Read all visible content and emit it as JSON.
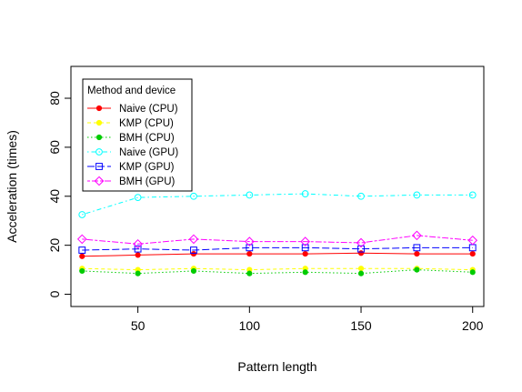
{
  "chart_data": {
    "type": "line",
    "title": "",
    "xlabel": "Pattern length",
    "ylabel": "Acceleration (times)",
    "x": [
      25,
      50,
      75,
      100,
      125,
      150,
      175,
      200
    ],
    "xlim": [
      20,
      205
    ],
    "ylim": [
      -5,
      93
    ],
    "xticks": [
      50,
      100,
      150,
      200
    ],
    "yticks": [
      0,
      20,
      40,
      60,
      80
    ],
    "grid": false,
    "legend": {
      "title": "Method and device",
      "position": "top-left"
    },
    "series": [
      {
        "name": "Naive (CPU)",
        "color": "#ff0000",
        "line": "solid",
        "marker": "filled-circle",
        "values": [
          15.5,
          16.0,
          16.5,
          16.5,
          16.5,
          16.8,
          16.5,
          16.5
        ]
      },
      {
        "name": "KMP (CPU)",
        "color": "#ffff00",
        "line": "dashed",
        "marker": "filled-circle",
        "values": [
          10.5,
          10.0,
          10.5,
          10.0,
          10.5,
          10.5,
          10.5,
          10.0
        ]
      },
      {
        "name": "BMH (CPU)",
        "color": "#00cc00",
        "line": "dotted",
        "marker": "filled-circle",
        "values": [
          9.5,
          8.5,
          9.5,
          8.5,
          9.0,
          8.5,
          10.0,
          9.0
        ]
      },
      {
        "name": "Naive (GPU)",
        "color": "#00ffff",
        "line": "dotdash",
        "marker": "open-circle",
        "values": [
          32.5,
          39.5,
          40.0,
          40.5,
          41.0,
          40.0,
          40.5,
          40.5
        ]
      },
      {
        "name": "KMP (GPU)",
        "color": "#0000ff",
        "line": "longdash",
        "marker": "open-square",
        "values": [
          18.0,
          18.5,
          18.0,
          19.0,
          19.0,
          18.5,
          19.0,
          19.0
        ]
      },
      {
        "name": "BMH (GPU)",
        "color": "#ff00ff",
        "line": "twodash",
        "marker": "open-diamond",
        "values": [
          22.5,
          20.5,
          22.5,
          21.5,
          21.5,
          21.0,
          24.0,
          22.0
        ]
      }
    ]
  }
}
